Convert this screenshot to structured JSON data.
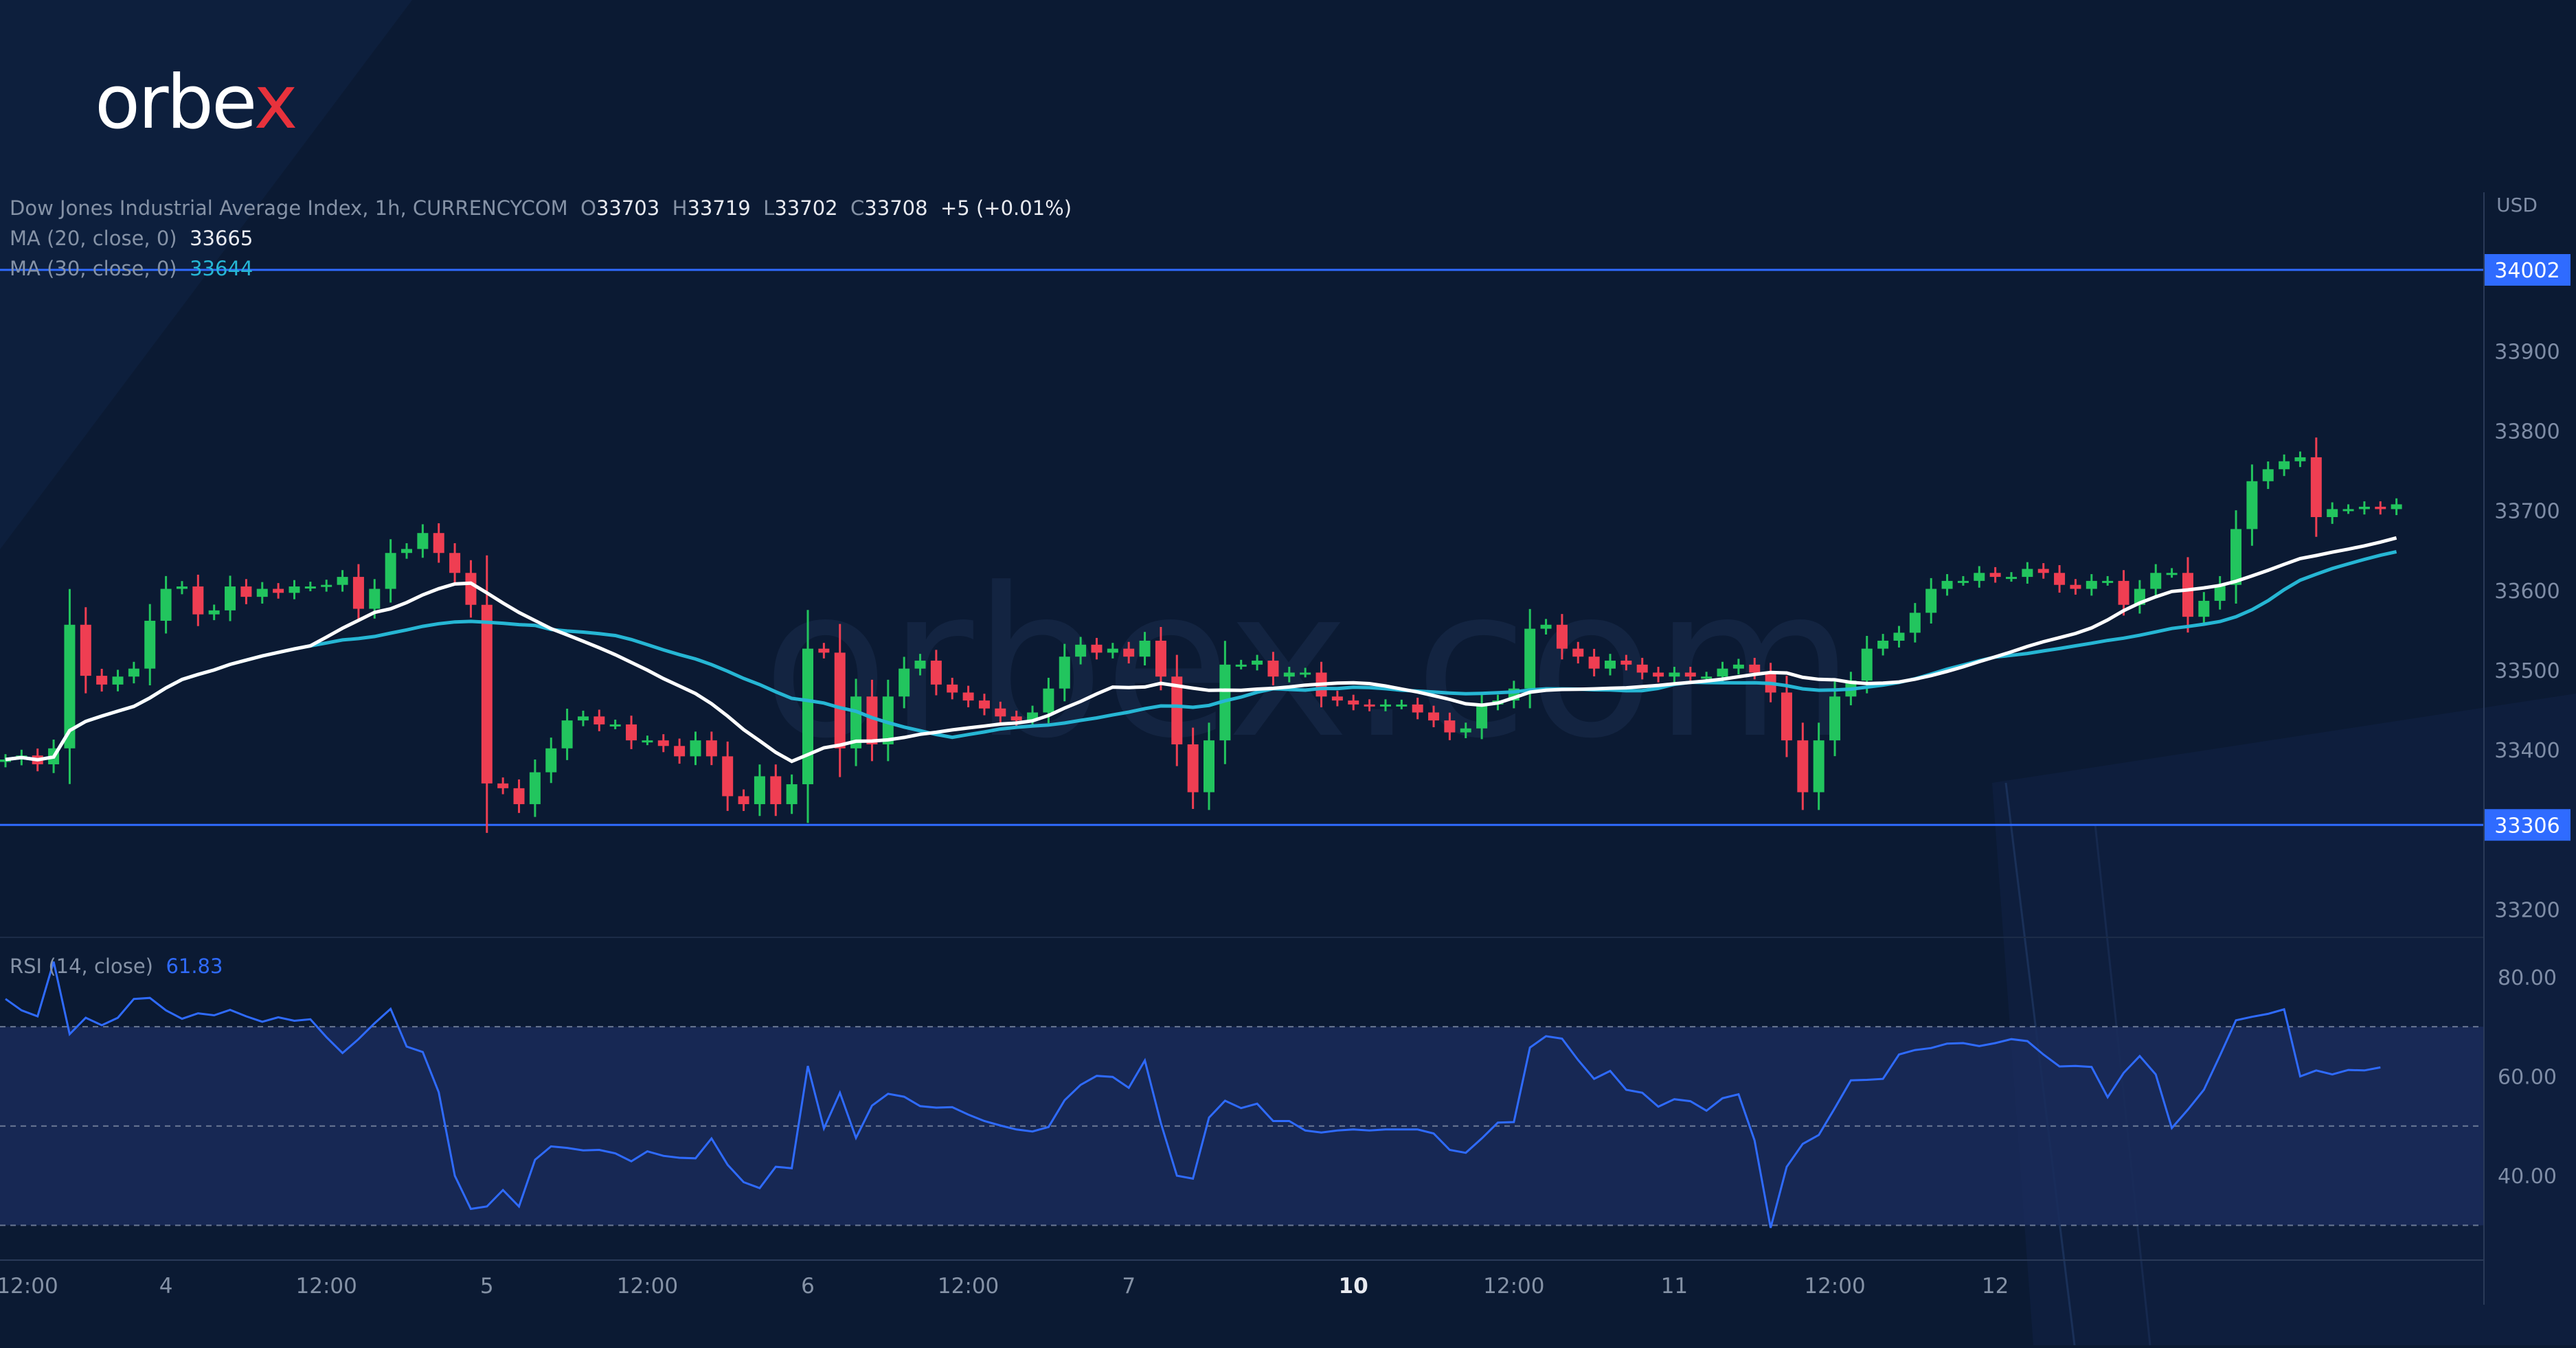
{
  "logo": {
    "text_main": "orbe",
    "text_accent": "x"
  },
  "header": {
    "symbol": "Dow Jones Industrial Average Index, 1h, CURRENCYCOM",
    "o_label": "O",
    "o_value": "33703",
    "h_label": "H",
    "h_value": "33719",
    "l_label": "L",
    "l_value": "33702",
    "c_label": "C",
    "c_value": "33708",
    "change": "+5 (+0.01%)"
  },
  "indicators": {
    "ma20_label": "MA (20, close, 0)",
    "ma20_value": "33665",
    "ma30_label": "MA (30, close, 0)",
    "ma30_value": "33644",
    "rsi_label": "RSI (14, close)",
    "rsi_value": "61.83"
  },
  "colors": {
    "background": "#0b1a33",
    "up": "#22c55e",
    "down": "#ef3e52",
    "ma20": "#ffffff",
    "ma30": "#26b6d4",
    "level_line": "#2f6bff",
    "rsi_line": "#2f6bff"
  },
  "chart_data": {
    "type": "candlestick",
    "currency": "USD",
    "y_ticks": [
      "33900",
      "33800",
      "33700",
      "33600",
      "33500",
      "33400",
      "33200"
    ],
    "ylim": [
      33165,
      34095
    ],
    "levels": [
      {
        "label": "34002",
        "value": 34002
      },
      {
        "label": "33306",
        "value": 33306
      }
    ],
    "x_ticks": [
      {
        "label": "12:00",
        "index": 0,
        "bold": false
      },
      {
        "label": "4",
        "index": 10,
        "bold": false
      },
      {
        "label": "12:00",
        "index": 20,
        "bold": false
      },
      {
        "label": "5",
        "index": 30,
        "bold": false
      },
      {
        "label": "12:00",
        "index": 40,
        "bold": false
      },
      {
        "label": "6",
        "index": 50,
        "bold": false
      },
      {
        "label": "12:00",
        "index": 60,
        "bold": false
      },
      {
        "label": "7",
        "index": 70,
        "bold": false
      },
      {
        "label": "10",
        "index": 84,
        "bold": true
      },
      {
        "label": "12:00",
        "index": 94,
        "bold": false
      },
      {
        "label": "11",
        "index": 104,
        "bold": false
      },
      {
        "label": "12:00",
        "index": 114,
        "bold": false
      },
      {
        "label": "12",
        "index": 124,
        "bold": false
      }
    ],
    "close": [
      33388,
      33393,
      33382,
      33402,
      33557,
      33493,
      33482,
      33492,
      33502,
      33562,
      33602,
      33605,
      33570,
      33575,
      33605,
      33592,
      33602,
      33597,
      33605,
      33605,
      33607,
      33617,
      33577,
      33602,
      33647,
      33652,
      33672,
      33647,
      33622,
      33582,
      33358,
      33352,
      33332,
      33372,
      33402,
      33437,
      33442,
      33432,
      33432,
      33412,
      33412,
      33405,
      33392,
      33412,
      33392,
      33342,
      33332,
      33367,
      33332,
      33357,
      33527,
      33522,
      33402,
      33467,
      33407,
      33467,
      33502,
      33512,
      33482,
      33472,
      33462,
      33452,
      33442,
      33437,
      33447,
      33477,
      33517,
      33532,
      33522,
      33527,
      33517,
      33537,
      33492,
      33407,
      33347,
      33412,
      33507,
      33507,
      33512,
      33492,
      33497,
      33497,
      33467,
      33462,
      33457,
      33455,
      33457,
      33457,
      33447,
      33437,
      33422,
      33427,
      33457,
      33462,
      33477,
      33552,
      33557,
      33527,
      33517,
      33502,
      33512,
      33507,
      33497,
      33492,
      33497,
      33492,
      33492,
      33502,
      33507,
      33497,
      33472,
      33412,
      33347,
      33412,
      33467,
      33487,
      33527,
      33537,
      33547,
      33572,
      33602,
      33612,
      33612,
      33622,
      33617,
      33617,
      33627,
      33622,
      33607,
      33602,
      33612,
      33612,
      33582,
      33602,
      33622,
      33622,
      33567,
      33587,
      33607,
      33677,
      33737,
      33752,
      33762,
      33767,
      33692,
      33702,
      33702,
      33705,
      33702,
      33708
    ]
  },
  "rsi_data": {
    "y_ticks": [
      "80.00",
      "60.00",
      "40.00"
    ],
    "ylim": [
      23,
      88
    ],
    "bands": [
      70,
      50,
      30
    ],
    "values": [
      75.6,
      73.3,
      72.1,
      83.1,
      68.5,
      71.8,
      70.3,
      71.8,
      75.6,
      75.8,
      73.3,
      71.6,
      72.7,
      72.3,
      73.4,
      72.1,
      71.0,
      71.9,
      71.2,
      71.5,
      67.9,
      64.7,
      67.5,
      70.7,
      73.6,
      66.0,
      64.9,
      56.8,
      40.0,
      33.3,
      33.8,
      37.1,
      33.8,
      43.2,
      45.9,
      45.6,
      45.1,
      45.2,
      44.5,
      42.9,
      44.9,
      44.0,
      43.6,
      43.5,
      47.5,
      42.2,
      38.7,
      37.5,
      41.8,
      41.5,
      62.1,
      49.5,
      56.7,
      47.6,
      54.1,
      56.5,
      55.9,
      54.0,
      53.7,
      53.8,
      52.3,
      51.0,
      50.1,
      49.3,
      48.9,
      49.8,
      55.2,
      58.3,
      60.1,
      59.9,
      57.7,
      63.2,
      50.6,
      40.0,
      39.4,
      51.7,
      55.1,
      53.6,
      54.5,
      51.0,
      51.0,
      49.1,
      48.7,
      49.1,
      49.3,
      49.1,
      49.3,
      49.3,
      49.3,
      48.5,
      45.2,
      44.6,
      47.5,
      50.7,
      50.8,
      65.8,
      68.1,
      67.6,
      63.3,
      59.5,
      61.1,
      57.3,
      56.7,
      53.9,
      55.4,
      55.0,
      53.1,
      55.6,
      56.4,
      47.1,
      29.5,
      41.8,
      46.4,
      48.2,
      53.6,
      59.2,
      59.3,
      59.5,
      64.4,
      65.3,
      65.7,
      66.6,
      66.7,
      66.1,
      66.7,
      67.5,
      67.1,
      64.4,
      62.0,
      62.1,
      61.9,
      55.8,
      60.7,
      64.1,
      60.4,
      49.6,
      53.3,
      57.3,
      64.2,
      71.3,
      72.0,
      72.6,
      73.5,
      60.0,
      61.2,
      60.4,
      61.3,
      61.2,
      61.8
    ]
  }
}
